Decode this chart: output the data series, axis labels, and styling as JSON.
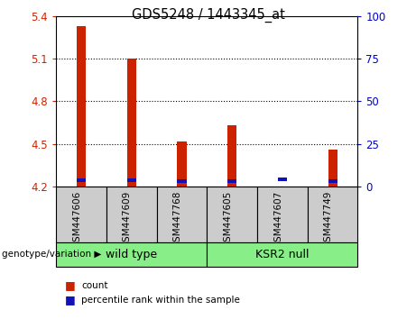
{
  "title": "GDS5248 / 1443345_at",
  "samples": [
    "GSM447606",
    "GSM447609",
    "GSM447768",
    "GSM447605",
    "GSM447607",
    "GSM447749"
  ],
  "red_values": [
    5.33,
    5.1,
    4.52,
    4.63,
    4.2,
    4.46
  ],
  "blue_values": [
    4.235,
    4.235,
    4.225,
    4.225,
    4.24,
    4.225
  ],
  "blue_bar_height": 0.025,
  "ymin": 4.2,
  "ymax": 5.4,
  "yticks_left": [
    4.2,
    4.5,
    4.8,
    5.1,
    5.4
  ],
  "yticks_right": [
    0,
    25,
    50,
    75,
    100
  ],
  "left_tick_color": "#cc2200",
  "right_tick_color": "#0000cc",
  "bar_width": 0.18,
  "plot_bg": "#ffffff",
  "legend_red": "count",
  "legend_blue": "percentile rank within the sample",
  "genotype_label": "genotype/variation",
  "group_label_1": "wild type",
  "group_label_2": "KSR2 null",
  "group_color": "#88ee88",
  "label_box_color": "#cccccc",
  "grid_color": "black",
  "grid_linestyle": ":",
  "grid_linewidth": 0.8,
  "spine_linewidth": 0.8
}
